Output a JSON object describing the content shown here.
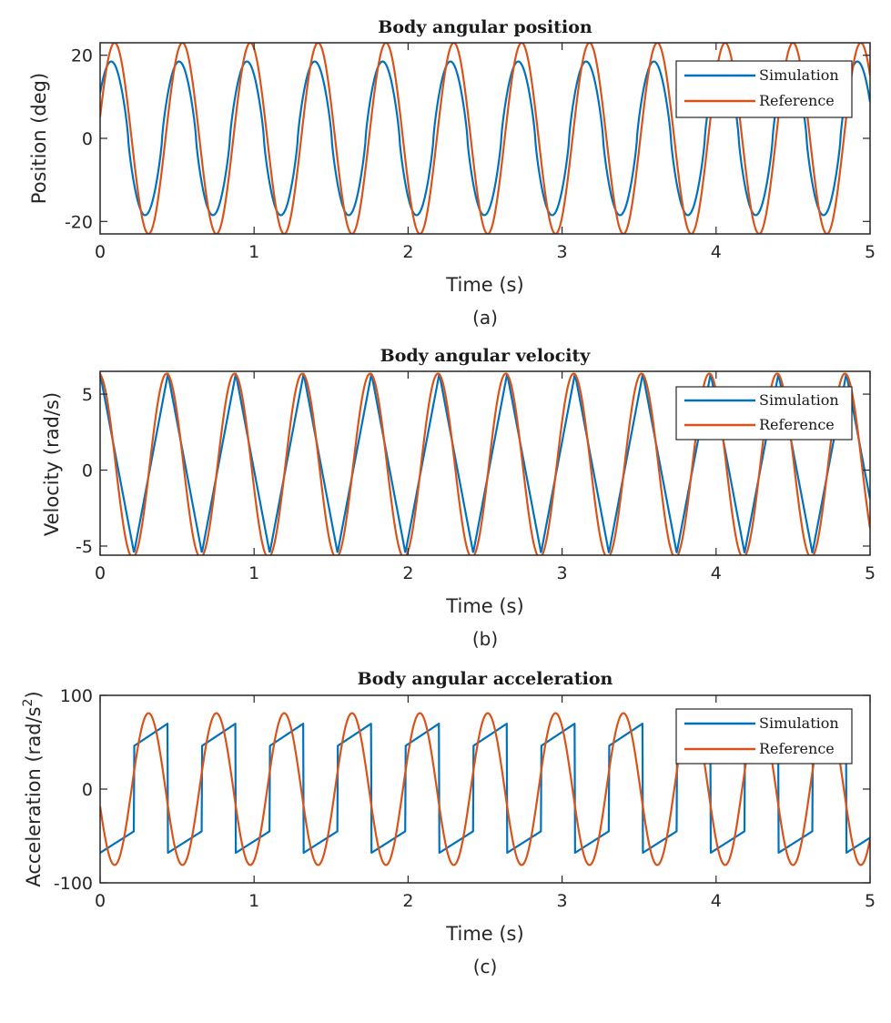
{
  "chart_data": [
    {
      "type": "line",
      "title": "Body angular position",
      "xlabel": "Time (s)",
      "ylabel": "Position (deg)",
      "caption": "(a)",
      "xlim": [
        0,
        5
      ],
      "ylim": [
        -23,
        23
      ],
      "xticks": [
        0,
        1,
        2,
        3,
        4,
        5
      ],
      "yticks": [
        -20,
        0,
        20
      ],
      "legend_position": "top-right",
      "grid": false,
      "series": [
        {
          "name": "Simulation",
          "color": "#0072BD",
          "waveform": "rounded-sine",
          "amplitude": 18.5,
          "frequency_hz": 2.27,
          "phase_deg": 31,
          "offset": 0,
          "x": [
            0,
            0.11,
            0.22,
            0.33,
            0.44,
            0.55,
            0.66,
            0.77,
            0.88,
            0.99,
            1.1
          ],
          "y": [
            9.5,
            18.5,
            1.5,
            -18.3,
            -4.5,
            18.5,
            1.0,
            -18.3,
            -4.0,
            18.5,
            1.2
          ]
        },
        {
          "name": "Reference",
          "color": "#D95319",
          "waveform": "sine",
          "amplitude": 23,
          "frequency_hz": 2.27,
          "phase_deg": 13,
          "offset": 0,
          "x": [
            0,
            0.11,
            0.22,
            0.33,
            0.44,
            0.55,
            0.66,
            0.77,
            0.88,
            0.99,
            1.1
          ],
          "y": [
            5.2,
            23,
            2.5,
            -23,
            -5.5,
            23,
            1.0,
            -23,
            -4.8,
            23,
            1.6
          ]
        }
      ]
    },
    {
      "type": "line",
      "title": "Body angular velocity",
      "xlabel": "Time (s)",
      "ylabel": "Velocity (rad/s)",
      "caption": "(b)",
      "xlim": [
        0,
        5
      ],
      "ylim": [
        -5.6,
        6.5
      ],
      "xticks": [
        0,
        1,
        2,
        3,
        4,
        5
      ],
      "yticks": [
        -5,
        0,
        5
      ],
      "legend_position": "top-right",
      "grid": false,
      "series": [
        {
          "name": "Simulation",
          "color": "#0072BD",
          "waveform": "triangle",
          "amplitude": 5.9,
          "frequency_hz": 2.27,
          "phase_deg": 90,
          "offset": 0.45,
          "x": [
            0,
            0.22,
            0.44,
            0.66,
            0.88,
            1.1
          ],
          "y": [
            6.35,
            -5.45,
            6.35,
            -5.45,
            6.35,
            -5.45
          ]
        },
        {
          "name": "Reference",
          "color": "#D95319",
          "waveform": "sine",
          "amplitude": 6.05,
          "frequency_hz": 2.27,
          "phase_deg": 97,
          "offset": 0.3,
          "x": [
            0,
            0.22,
            0.44,
            0.66,
            0.88,
            1.1
          ],
          "y": [
            6.3,
            -5.7,
            6.3,
            -5.7,
            6.3,
            -5.7
          ]
        }
      ]
    },
    {
      "type": "line",
      "title": "Body angular acceleration",
      "xlabel": "Time (s)",
      "ylabel": "Acceleration (rad/s",
      "ylabel_superscript": "2",
      "ylabel_suffix": ")",
      "caption": "(c)",
      "xlim": [
        0,
        5
      ],
      "ylim": [
        -100,
        100
      ],
      "xticks": [
        0,
        1,
        2,
        3,
        4,
        5
      ],
      "yticks": [
        -100,
        0,
        100
      ],
      "legend_position": "top-right",
      "grid": false,
      "series": [
        {
          "name": "Simulation",
          "color": "#0072BD",
          "waveform": "bang-bang",
          "high_start": 46,
          "high_end": 70,
          "low_start": -68,
          "low_end": -45,
          "frequency_hz": 2.27,
          "first_switch_s": 0.22,
          "x": [
            0,
            0.22,
            0.22,
            0.44,
            0.44,
            0.66,
            0.66,
            0.88,
            0.88
          ],
          "y": [
            -68,
            -45,
            46,
            70,
            -68,
            -45,
            46,
            70,
            -68
          ]
        },
        {
          "name": "Reference",
          "color": "#D95319",
          "waveform": "sine",
          "amplitude": 81,
          "frequency_hz": 2.27,
          "phase_deg": 193,
          "offset": 0,
          "x": [
            0,
            0.11,
            0.22,
            0.33,
            0.44,
            0.55,
            0.66
          ],
          "y": [
            -18,
            -81,
            -8,
            81,
            20,
            -81,
            -8
          ]
        }
      ]
    }
  ],
  "colors": {
    "axes": "#262626",
    "background": "#ffffff"
  }
}
